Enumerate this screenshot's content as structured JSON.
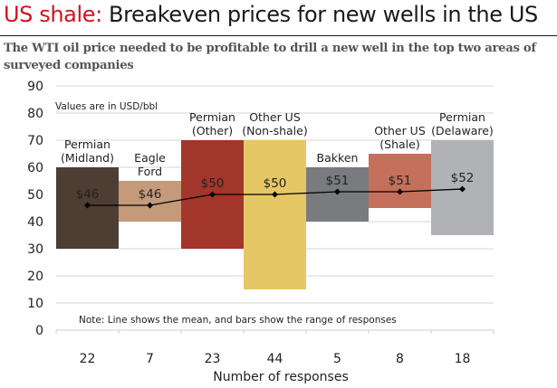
{
  "header": {
    "title_accent": "US shale:",
    "title_rest": " Breakeven prices for new wells in the US",
    "subtitle": "The WTI oil price needed to be profitable to drill a new well in the top two areas of surveyed companies"
  },
  "chart_data": {
    "type": "bar",
    "subtype": "floating-range-bar-with-mean-line",
    "title": "US shale: Breakeven prices for new wells in the US",
    "subtitle": "The WTI oil price needed to be profitable to drill a new well in the top two areas of surveyed companies",
    "units_note": "Values are in USD/bbl",
    "footnote": "Note: Line shows the mean, and bars show the range of responses",
    "xlabel": "Number of responses",
    "ylabel": "",
    "ylim": [
      0,
      90
    ],
    "yticks": [
      0,
      10,
      20,
      30,
      40,
      50,
      60,
      70,
      80,
      90
    ],
    "grid": true,
    "categories": [
      [
        "Permian",
        "(Midland)"
      ],
      [
        "Eagle",
        "Ford"
      ],
      [
        "Permian",
        "(Other)"
      ],
      [
        "Other US",
        "(Non-shale)"
      ],
      [
        "Bakken"
      ],
      [
        "Other US",
        "(Shale)"
      ],
      [
        "Permian",
        "(Delaware)"
      ]
    ],
    "responses": [
      "22",
      "7",
      "23",
      "44",
      "5",
      "8",
      "18"
    ],
    "range_low": [
      30,
      40,
      30,
      15,
      40,
      45,
      35
    ],
    "range_high": [
      60,
      55,
      70,
      70,
      60,
      65,
      70
    ],
    "mean": [
      46,
      46,
      50,
      50,
      51,
      51,
      52
    ],
    "mean_labels": [
      "$46",
      "$46",
      "$50",
      "$50",
      "$51",
      "$51",
      "$52"
    ],
    "colors": [
      "#4e3d32",
      "#c49a7b",
      "#a3362a",
      "#e6c766",
      "#7a7b7e",
      "#c5705a",
      "#b1b2b5"
    ],
    "line_color": "#000000"
  }
}
